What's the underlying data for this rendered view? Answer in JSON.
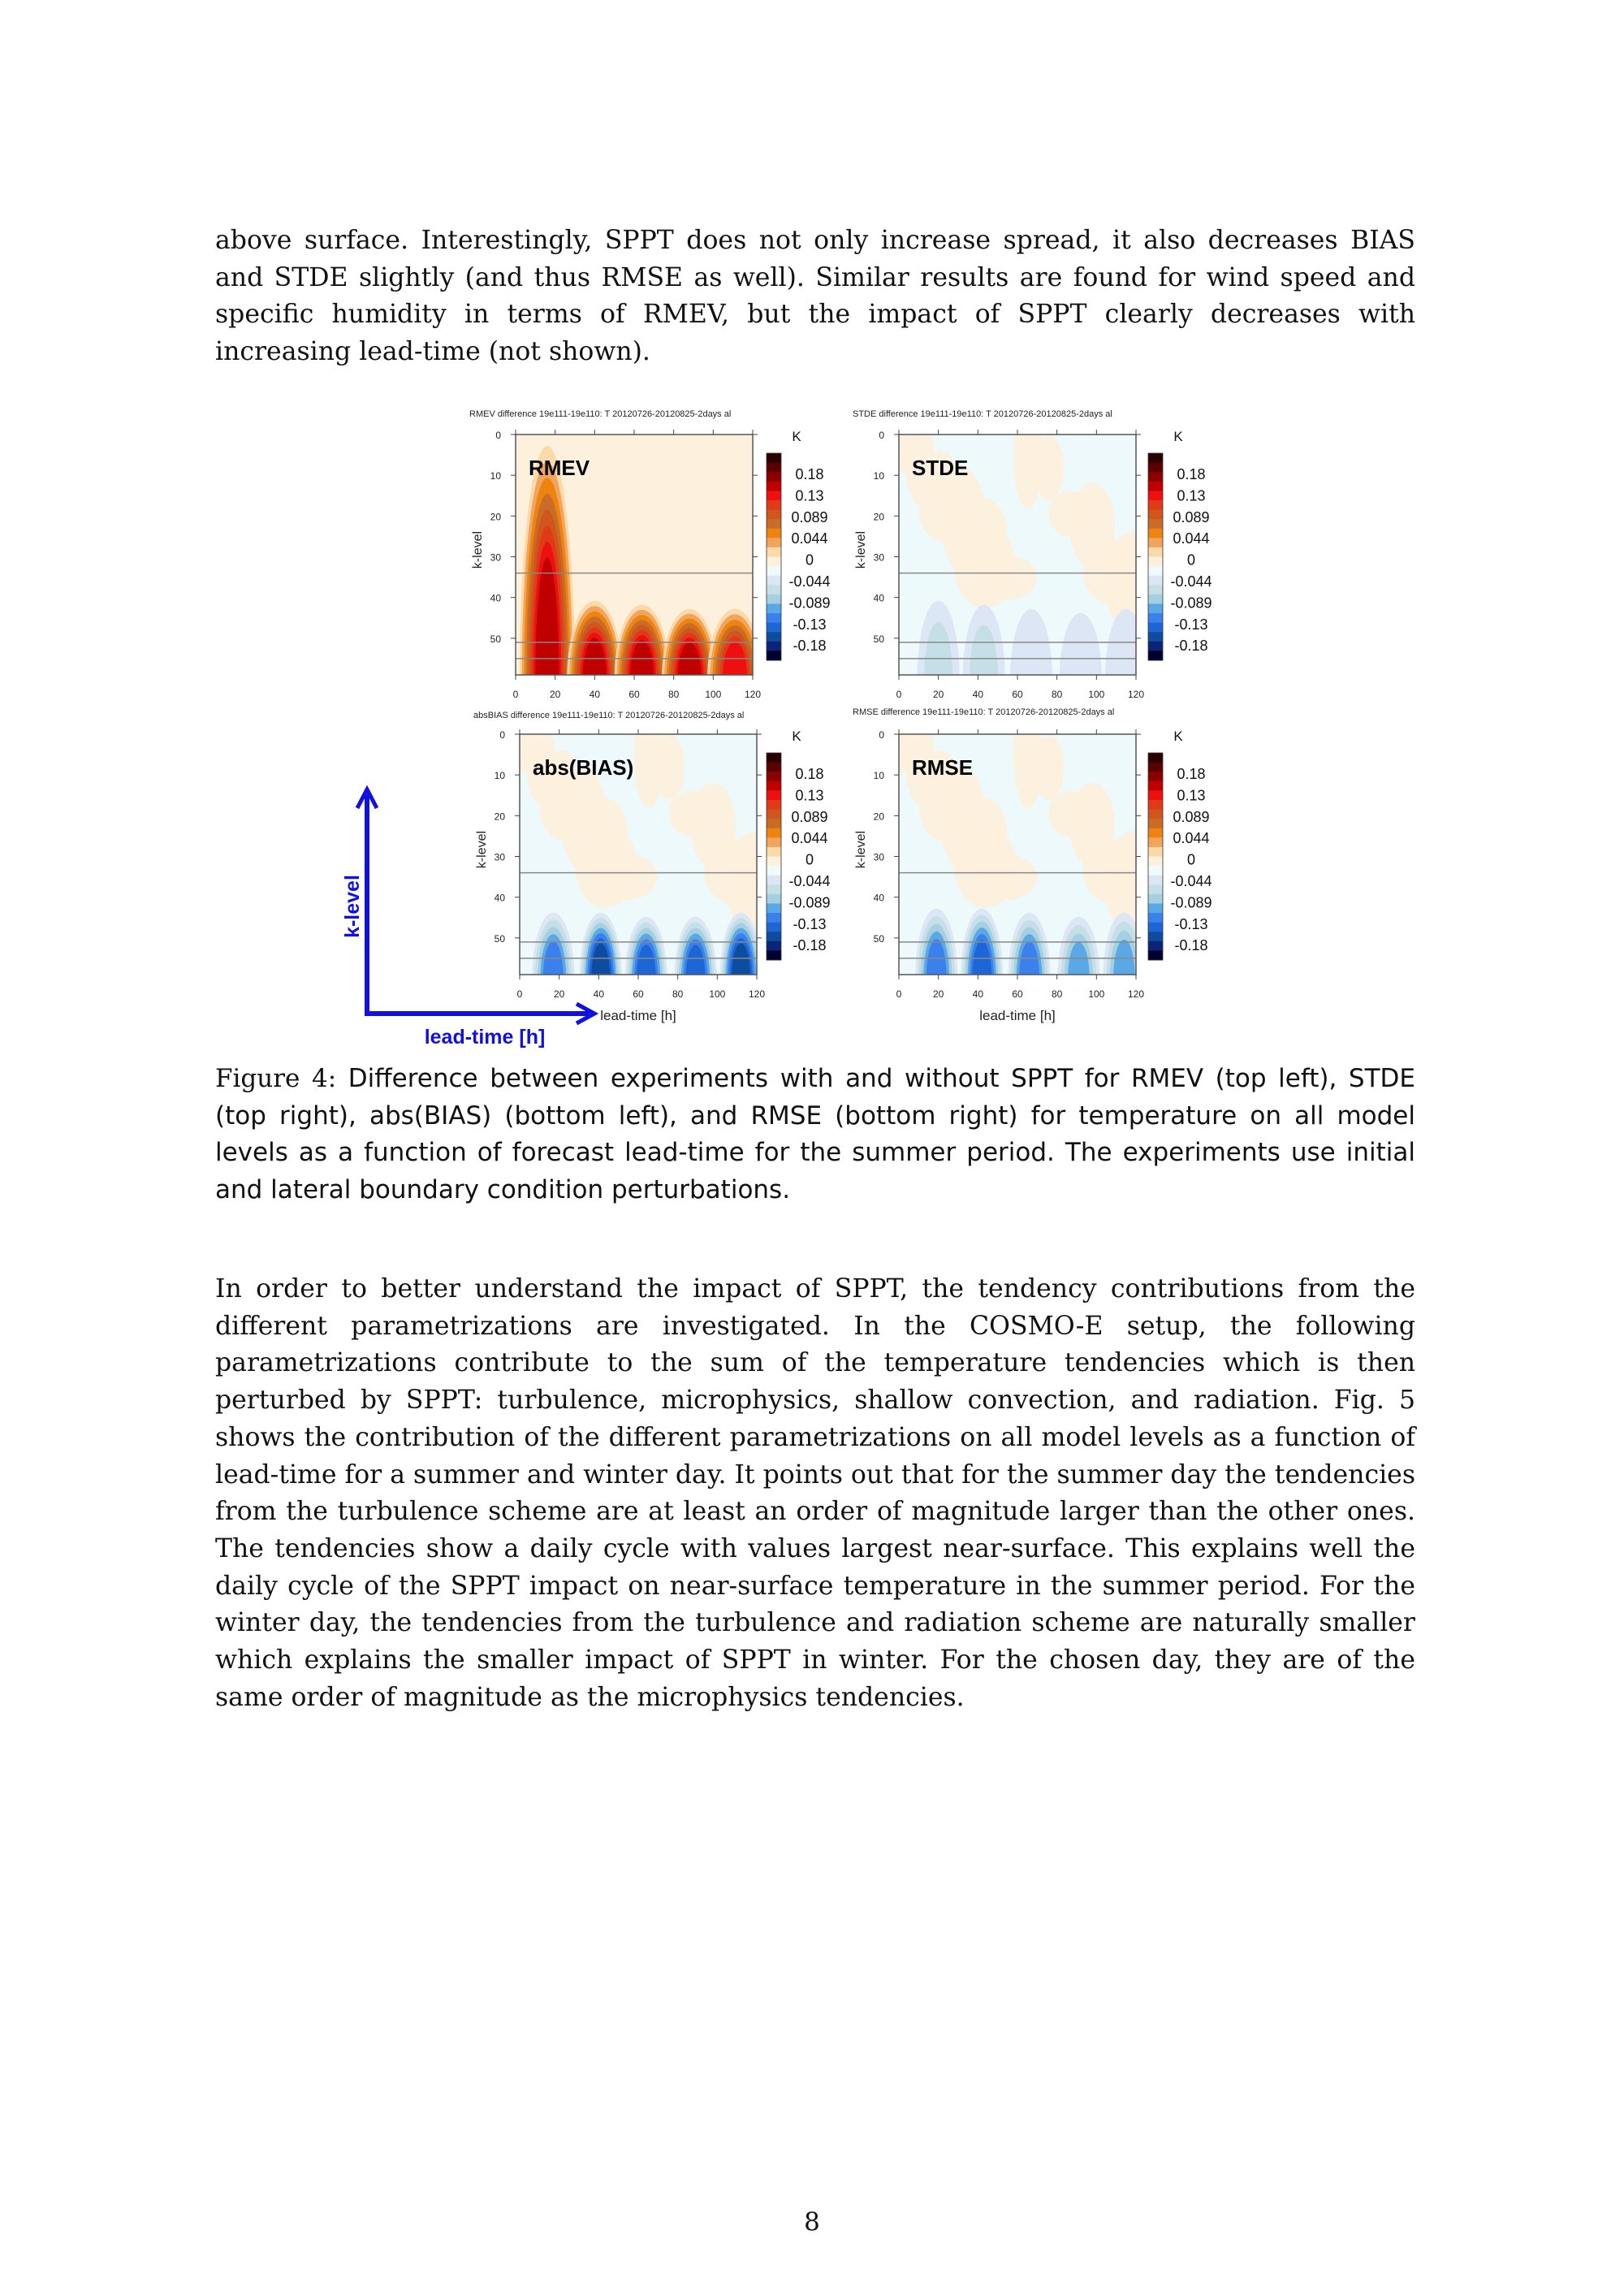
{
  "paragraph1": "above surface. Interestingly, SPPT does not only increase spread, it also decreases BIAS and STDE slightly (and thus RMSE as well). Similar results are found for wind speed and specific humidity in terms of RMEV, but the impact of SPPT clearly decreases with increasing lead-time (not shown).",
  "caption": {
    "label": "Figure 4:",
    "text": "Difference between experiments with and without SPPT for RMEV (top left), STDE (top right), abs(BIAS) (bottom left), and RMSE (bottom right) for temperature on all model levels as a function of forecast lead-time for the summer period. The experiments use initial and lateral boundary condition perturbations."
  },
  "paragraph2": "In order to better understand the impact of SPPT, the tendency contributions from the different parametrizations are investigated. In the COSMO-E setup, the following parametrizations contribute to the sum of the temperature tendencies which is then perturbed by SPPT: turbulence, microphysics, shallow convection, and radiation. Fig. 5 shows the contribution of the different parametrizations on all model levels as a function of lead-time for a summer and winter day. It points out that for the summer day the tendencies from the turbulence scheme are at least an order of magnitude larger than the other ones. The tendencies show a daily cycle with values largest near-surface. This explains well the daily cycle of the SPPT impact on near-surface temperature in the summer period. For the winter day, the tendencies from the turbulence and radiation scheme are naturally smaller which explains the smaller impact of SPPT in winter. For the chosen day, they are of the same order of magnitude as the microphysics tendencies.",
  "page_number": "8",
  "figure_axes": {
    "k_label": "k-level",
    "lead_label": "lead-time [h]",
    "color": "#1010e0"
  },
  "chart_data": [
    {
      "type": "heatmap",
      "header": "RMEV difference 19e111-19e110: T    20120726-20120825-2days al",
      "panel_label": "RMEV",
      "ylabel": "k-level",
      "xlabel": "",
      "xticks": [
        "0",
        "20",
        "40",
        "60",
        "80",
        "100",
        "120"
      ],
      "yticks": [
        "0",
        "10",
        "20",
        "30",
        "40",
        "50"
      ],
      "xlim": [
        0,
        120
      ],
      "ylim": [
        0,
        59
      ],
      "y_inverted": true,
      "reference_levels": [
        34,
        51,
        55
      ],
      "colorbar_unit": "K",
      "colorbar_labels": [
        "0.18",
        "0.13",
        "0.089",
        "0.044",
        "0",
        "-0.044",
        "-0.089",
        "-0.13",
        "-0.18"
      ],
      "background": "slightly positive",
      "features": [
        {
          "lead_time": 16,
          "top_k": 2,
          "sign": 1,
          "max_level": 8
        },
        {
          "lead_time": 40,
          "top_k": 40,
          "sign": 1,
          "max_level": 8
        },
        {
          "lead_time": 64,
          "top_k": 41,
          "sign": 1,
          "max_level": 8
        },
        {
          "lead_time": 88,
          "top_k": 42,
          "sign": 1,
          "max_level": 8
        },
        {
          "lead_time": 111,
          "top_k": 42,
          "sign": 1,
          "max_level": 7
        }
      ]
    },
    {
      "type": "heatmap",
      "header": "STDE difference 19e111-19e110: T    20120726-20120825-2days al",
      "panel_label": "STDE",
      "ylabel": "k-level",
      "xlabel": "",
      "xticks": [
        "0",
        "20",
        "40",
        "60",
        "80",
        "100",
        "120"
      ],
      "yticks": [
        "0",
        "10",
        "20",
        "30",
        "40",
        "50"
      ],
      "xlim": [
        0,
        120
      ],
      "ylim": [
        0,
        59
      ],
      "y_inverted": true,
      "reference_levels": [
        34,
        51,
        55
      ],
      "colorbar_unit": "K",
      "colorbar_labels": [
        "0.18",
        "0.13",
        "0.089",
        "0.044",
        "0",
        "-0.044",
        "-0.089",
        "-0.13",
        "-0.18"
      ],
      "background": "near zero",
      "features": [
        {
          "lead_time": 20,
          "top_k": 40,
          "sign": -1,
          "max_level": 2
        },
        {
          "lead_time": 43,
          "top_k": 41,
          "sign": -1,
          "max_level": 2
        },
        {
          "lead_time": 67,
          "top_k": 42,
          "sign": -1,
          "max_level": 1
        },
        {
          "lead_time": 92,
          "top_k": 43,
          "sign": -1,
          "max_level": 1
        },
        {
          "lead_time": 115,
          "top_k": 42,
          "sign": -1,
          "max_level": 1
        }
      ]
    },
    {
      "type": "heatmap",
      "header": "absBIAS difference 19e111-19e110: T    20120726-20120825-2days al",
      "panel_label": "abs(BIAS)",
      "ylabel": "k-level",
      "xlabel": "lead-time [h]",
      "xticks": [
        "0",
        "20",
        "40",
        "60",
        "80",
        "100",
        "120"
      ],
      "yticks": [
        "0",
        "10",
        "20",
        "30",
        "40",
        "50"
      ],
      "xlim": [
        0,
        120
      ],
      "ylim": [
        0,
        59
      ],
      "y_inverted": true,
      "reference_levels": [
        34,
        51,
        55
      ],
      "colorbar_unit": "K",
      "colorbar_labels": [
        "0.18",
        "0.13",
        "0.089",
        "0.044",
        "0",
        "-0.044",
        "-0.089",
        "-0.13",
        "-0.18"
      ],
      "background": "near zero",
      "features": [
        {
          "lead_time": 17,
          "top_k": 43,
          "sign": -1,
          "max_level": 5
        },
        {
          "lead_time": 41,
          "top_k": 43,
          "sign": -1,
          "max_level": 7
        },
        {
          "lead_time": 64,
          "top_k": 44,
          "sign": -1,
          "max_level": 6
        },
        {
          "lead_time": 89,
          "top_k": 44,
          "sign": -1,
          "max_level": 6
        },
        {
          "lead_time": 112,
          "top_k": 43,
          "sign": -1,
          "max_level": 7
        }
      ]
    },
    {
      "type": "heatmap",
      "header": "RMSE difference 19e111-19e110: T    20120726-20120825-2days al",
      "panel_label": "RMSE",
      "ylabel": "k-level",
      "xlabel": "lead-time [h]",
      "xticks": [
        "0",
        "20",
        "40",
        "60",
        "80",
        "100",
        "120"
      ],
      "yticks": [
        "0",
        "10",
        "20",
        "30",
        "40",
        "50"
      ],
      "xlim": [
        0,
        120
      ],
      "ylim": [
        0,
        59
      ],
      "y_inverted": true,
      "reference_levels": [
        34,
        51,
        55
      ],
      "colorbar_unit": "K",
      "colorbar_labels": [
        "0.18",
        "0.13",
        "0.089",
        "0.044",
        "0",
        "-0.044",
        "-0.089",
        "-0.13",
        "-0.18"
      ],
      "background": "near zero",
      "features": [
        {
          "lead_time": 19,
          "top_k": 42,
          "sign": -1,
          "max_level": 5
        },
        {
          "lead_time": 42,
          "top_k": 42,
          "sign": -1,
          "max_level": 6
        },
        {
          "lead_time": 66,
          "top_k": 43,
          "sign": -1,
          "max_level": 5
        },
        {
          "lead_time": 91,
          "top_k": 44,
          "sign": -1,
          "max_level": 4
        },
        {
          "lead_time": 114,
          "top_k": 43,
          "sign": -1,
          "max_level": 4
        }
      ]
    }
  ],
  "colorscale": [
    "#2a0000",
    "#5a0000",
    "#8c0000",
    "#c00000",
    "#ee1010",
    "#e03a18",
    "#d0561e",
    "#c86c28",
    "#ee8410",
    "#f2a45c",
    "#fcd9a8",
    "#fdf0dc",
    "#eefafc",
    "#dde6f4",
    "#c4e0e6",
    "#a6d0e2",
    "#5aa8e6",
    "#3c80ee",
    "#1c66d6",
    "#0e4c9e",
    "#0c2478",
    "#000030"
  ]
}
